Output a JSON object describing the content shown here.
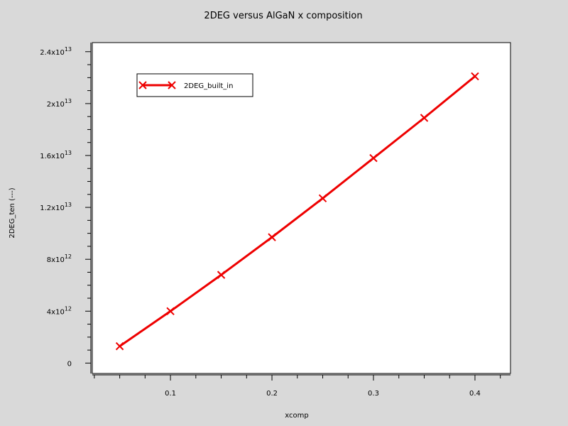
{
  "chart_data": {
    "type": "line",
    "title": "2DEG versus AlGaN x composition",
    "xlabel": "xcomp",
    "ylabel": "2DEG_ten (---)",
    "xlim": [
      0.023,
      0.435
    ],
    "ylim": [
      -800000000000.0,
      24700000000000.0
    ],
    "x_ticks": [
      {
        "value": 0.1,
        "label": "0.1"
      },
      {
        "value": 0.2,
        "label": "0.2"
      },
      {
        "value": 0.3,
        "label": "0.3"
      },
      {
        "value": 0.4,
        "label": "0.4"
      }
    ],
    "y_ticks": [
      {
        "value": 0,
        "mantissa": "0",
        "exp": ""
      },
      {
        "value": 4000000000000.0,
        "mantissa": "4x10",
        "exp": "12"
      },
      {
        "value": 8000000000000.0,
        "mantissa": "8x10",
        "exp": "12"
      },
      {
        "value": 12000000000000.0,
        "mantissa": "1.2x10",
        "exp": "13"
      },
      {
        "value": 16000000000000.0,
        "mantissa": "1.6x10",
        "exp": "13"
      },
      {
        "value": 20000000000000.0,
        "mantissa": "2x10",
        "exp": "13"
      },
      {
        "value": 24000000000000.0,
        "mantissa": "2.4x10",
        "exp": "13"
      }
    ],
    "series": [
      {
        "name": "2DEG_built_in",
        "color": "#ee0000",
        "marker": "x",
        "x": [
          0.05,
          0.1,
          0.15,
          0.2,
          0.25,
          0.3,
          0.35,
          0.4
        ],
        "y": [
          1300000000000.0,
          4000000000000.0,
          6800000000000.0,
          9700000000000.0,
          12700000000000.0,
          15800000000000.0,
          18900000000000.0,
          22100000000000.0
        ]
      }
    ],
    "legend_position": "top-left",
    "grid": false
  },
  "colors": {
    "background": "#d9d9d9",
    "plot_area": "#ffffff",
    "series": "#ee0000"
  }
}
